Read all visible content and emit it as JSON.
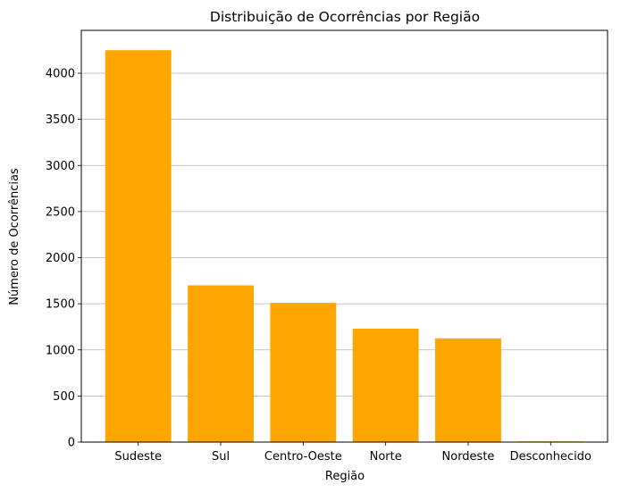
{
  "chart_data": {
    "type": "bar",
    "title": "Distribuição de Ocorrências por Região",
    "xlabel": "Região",
    "ylabel": "Número de Ocorrências",
    "categories": [
      "Sudeste",
      "Sul",
      "Centro-Oeste",
      "Norte",
      "Nordeste",
      "Desconhecido"
    ],
    "values": [
      4250,
      1700,
      1510,
      1230,
      1125,
      8
    ],
    "ylim": [
      0,
      4465
    ],
    "yticks": [
      0,
      500,
      1000,
      1500,
      2000,
      2500,
      3000,
      3500,
      4000
    ],
    "grid": "y-axis only",
    "bar_color": "#ffa500",
    "grid_color": "#b0b0b0"
  }
}
